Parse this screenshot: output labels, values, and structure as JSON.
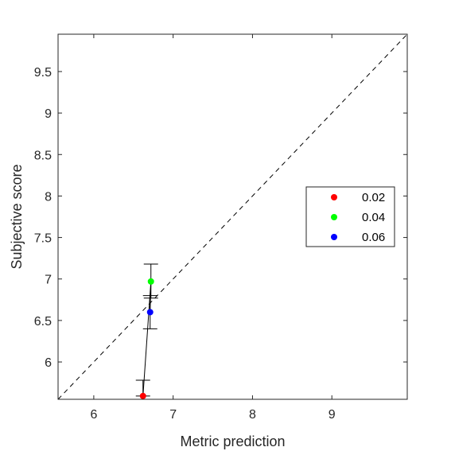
{
  "chart_data": {
    "type": "scatter",
    "title": "",
    "xlabel": "Metric prediction",
    "ylabel": "Subjective score",
    "xlim": [
      5.55,
      9.95
    ],
    "ylim": [
      5.55,
      9.95
    ],
    "xticks": [
      6,
      7,
      8,
      9
    ],
    "yticks": [
      6,
      6.5,
      7,
      7.5,
      8,
      8.5,
      9,
      9.5
    ],
    "xtick_labels": [
      "6",
      "7",
      "8",
      "9"
    ],
    "ytick_labels": [
      "6",
      "6.5",
      "7",
      "7.5",
      "8",
      "8.5",
      "9",
      "9.5"
    ],
    "grid": false,
    "legend_position": "right",
    "reference_line": {
      "style": "dashed",
      "from": [
        5.55,
        5.55
      ],
      "to": [
        9.95,
        9.95
      ],
      "color": "#000000"
    },
    "connecting_line": {
      "color": "#000000"
    },
    "series": [
      {
        "name": "0.02",
        "x": 6.62,
        "y": 5.59,
        "err_low": 5.59,
        "err_high": 5.78,
        "color": "#ff0000"
      },
      {
        "name": "0.04",
        "x": 6.72,
        "y": 6.97,
        "err_low": 6.77,
        "err_high": 7.18,
        "color": "#00ff00"
      },
      {
        "name": "0.06",
        "x": 6.71,
        "y": 6.6,
        "err_low": 6.4,
        "err_high": 6.8,
        "color": "#0000ff"
      }
    ]
  }
}
